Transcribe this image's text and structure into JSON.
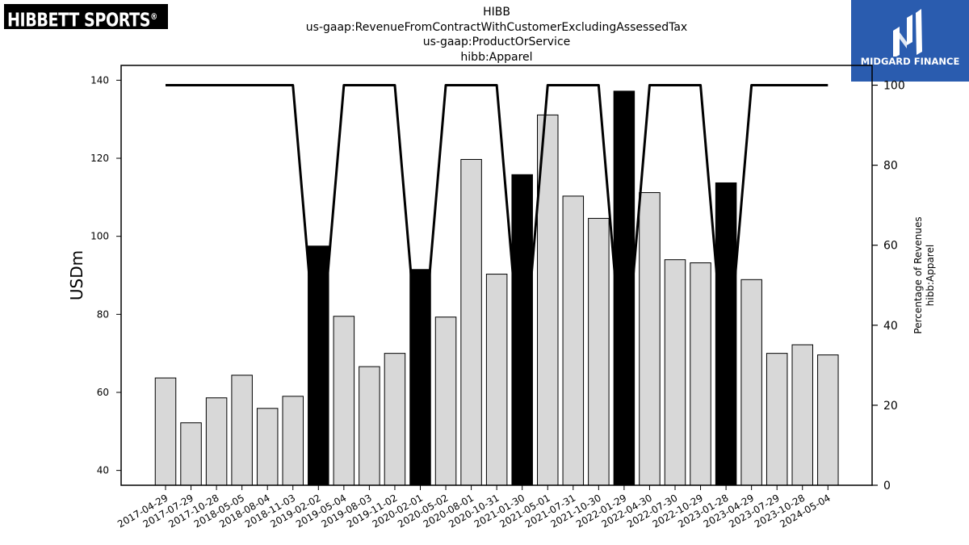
{
  "logos": {
    "left_text": "HIBBETT SPORTS",
    "left_mark": "®",
    "right_text": "MIDGARD FINANCE",
    "right_icon": "midgard-logo-icon"
  },
  "header": {
    "lines": [
      "HIBB",
      "us-gaap:RevenueFromContractWithCustomerExcludingAssessedTax",
      "us-gaap:ProductOrService",
      "hibb:Apparel"
    ]
  },
  "colors": {
    "bar_default": "#d8d8d8",
    "bar_highlight": "#000000",
    "line": "#000000",
    "brand_blue": "#2a5caf"
  },
  "chart_data": {
    "type": "bar",
    "ylabel": "USDm",
    "y2label_lines": [
      "Percentage of Revenues",
      "hibb:Apparel"
    ],
    "ylim": [
      36.2,
      143.8
    ],
    "y2lim": [
      0,
      100
    ],
    "yticks": [
      40,
      60,
      80,
      100,
      120,
      140
    ],
    "y2ticks": [
      0,
      20,
      40,
      60,
      80,
      100
    ],
    "grid": false,
    "categories": [
      "2017-04-29",
      "2017-07-29",
      "2017-10-28",
      "2018-05-05",
      "2018-08-04",
      "2018-11-03",
      "2019-02-02",
      "2019-05-04",
      "2019-08-03",
      "2019-11-02",
      "2020-02-01",
      "2020-05-02",
      "2020-08-01",
      "2020-10-31",
      "2021-01-30",
      "2021-05-01",
      "2021-07-31",
      "2021-10-30",
      "2022-01-29",
      "2022-04-30",
      "2022-07-30",
      "2022-10-29",
      "2023-01-28",
      "2023-04-29",
      "2023-07-29",
      "2023-10-28",
      "2024-05-04"
    ],
    "series": [
      {
        "type": "bar",
        "values": [
          63.7,
          52.2,
          58.6,
          64.4,
          55.9,
          59.0,
          97.5,
          79.5,
          66.6,
          70.0,
          91.5,
          79.3,
          119.7,
          90.3,
          115.8,
          131.1,
          110.3,
          104.6,
          137.2,
          111.2,
          94.0,
          93.2,
          113.7,
          88.9,
          70.0,
          72.2,
          69.6
        ],
        "highlight": [
          false,
          false,
          false,
          false,
          false,
          false,
          true,
          false,
          false,
          false,
          true,
          false,
          false,
          false,
          true,
          false,
          false,
          false,
          true,
          false,
          false,
          false,
          true,
          false,
          false,
          false,
          false
        ]
      },
      {
        "type": "line",
        "axis": "right",
        "values": [
          100,
          100,
          100,
          100,
          100,
          100,
          25.5,
          100,
          100,
          100,
          25.5,
          100,
          100,
          100,
          25.5,
          100,
          100,
          100,
          25.5,
          100,
          100,
          100,
          25.5,
          100,
          100,
          100,
          100
        ]
      }
    ]
  }
}
